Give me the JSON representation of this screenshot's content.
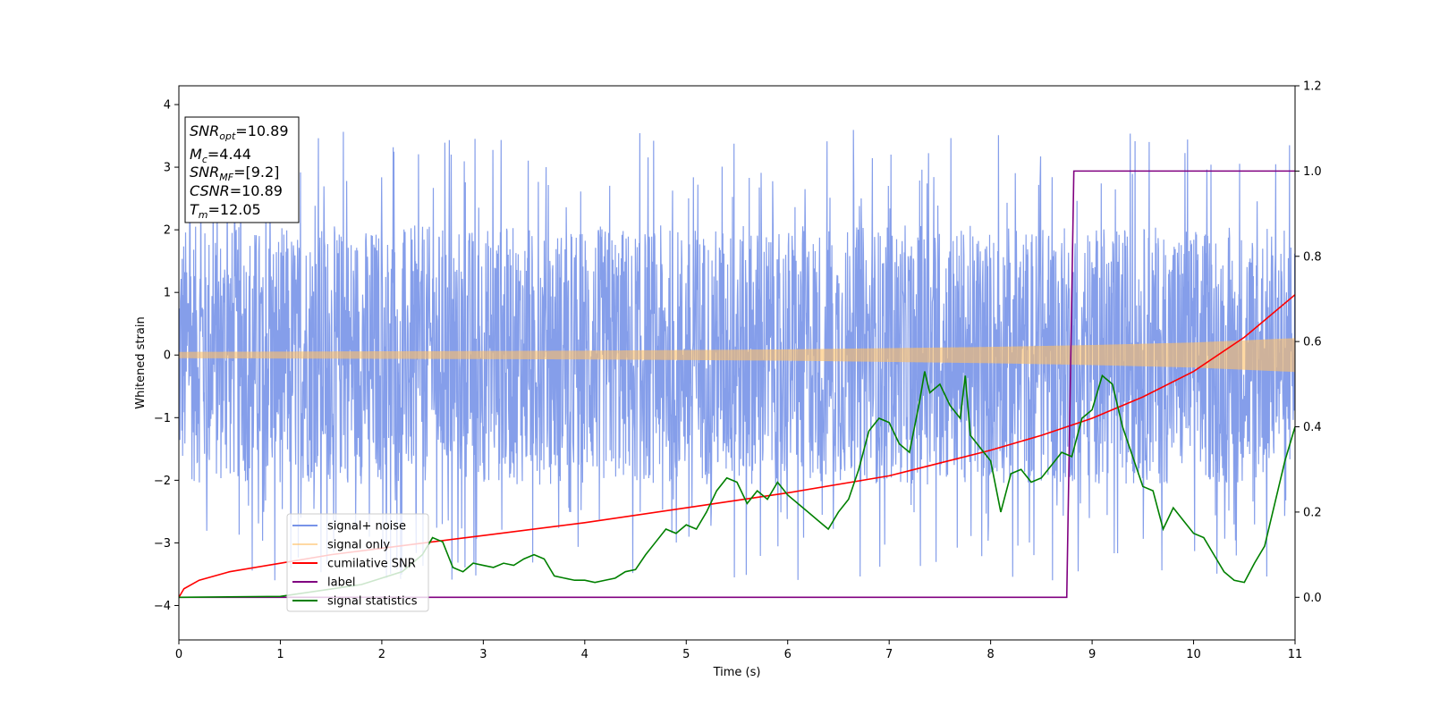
{
  "chart_data": {
    "type": "line",
    "xlabel": "Time (s)",
    "ylabel": "Whitened strain",
    "xlim": [
      0,
      11
    ],
    "ylim": [
      -4.55,
      4.3
    ],
    "y2lim": [
      -0.1,
      1.2
    ],
    "x_ticks": [
      "0",
      "1",
      "2",
      "3",
      "4",
      "5",
      "6",
      "7",
      "8",
      "9",
      "10",
      "11"
    ],
    "y_ticks": [
      "−4",
      "−3",
      "−2",
      "−1",
      "0",
      "1",
      "2",
      "3",
      "4"
    ],
    "y2_ticks": [
      "0.0",
      "0.2",
      "0.4",
      "0.6",
      "0.8",
      "1.0",
      "1.2"
    ],
    "legend_position": "lower-left",
    "info_box": {
      "snr_opt": "SNR_opt=10.89",
      "mc": "M_c=4.44",
      "snr_mf": "SNR_MF=[9.2]",
      "csnr": "CSNR=10.89",
      "tm": "T_m=12.05"
    },
    "series": [
      {
        "name": "signal+ noise",
        "axis": "left",
        "color": "#7893e8",
        "description_values": {
          "band_low": -2.3,
          "band_high": 2.3,
          "max_spike": 3.92,
          "min_spike": -4.15
        }
      },
      {
        "name": "signal only",
        "axis": "left",
        "color": "#ffbf66",
        "envelope": {
          "x": [
            0,
            2,
            4,
            6,
            8,
            9,
            10,
            11
          ],
          "amp": [
            0.05,
            0.06,
            0.07,
            0.09,
            0.13,
            0.16,
            0.2,
            0.27
          ]
        }
      },
      {
        "name": "cumilative SNR",
        "axis": "right",
        "color": "#ff0000",
        "x": [
          0,
          0.05,
          0.2,
          0.5,
          1,
          1.5,
          2,
          3,
          4,
          5,
          6,
          7,
          8,
          8.5,
          9,
          9.5,
          10,
          10.5,
          11
        ],
        "y": [
          0.0,
          0.02,
          0.04,
          0.06,
          0.08,
          0.1,
          0.115,
          0.145,
          0.175,
          0.21,
          0.245,
          0.285,
          0.345,
          0.38,
          0.42,
          0.47,
          0.53,
          0.61,
          0.71
        ]
      },
      {
        "name": "label",
        "axis": "right",
        "color": "#800080",
        "x": [
          0,
          8.75,
          8.82,
          11
        ],
        "y": [
          0,
          0,
          1,
          1
        ]
      },
      {
        "name": "signal statistics",
        "axis": "right",
        "color": "#008000",
        "x": [
          0,
          1,
          1.8,
          2.2,
          2.4,
          2.5,
          2.6,
          2.7,
          2.8,
          2.9,
          3.0,
          3.1,
          3.2,
          3.3,
          3.4,
          3.5,
          3.6,
          3.7,
          3.8,
          3.9,
          4.0,
          4.1,
          4.2,
          4.3,
          4.4,
          4.5,
          4.6,
          4.7,
          4.8,
          4.9,
          5.0,
          5.1,
          5.2,
          5.3,
          5.4,
          5.5,
          5.6,
          5.7,
          5.8,
          5.9,
          6.0,
          6.1,
          6.2,
          6.3,
          6.4,
          6.5,
          6.6,
          6.7,
          6.8,
          6.9,
          7.0,
          7.1,
          7.2,
          7.3,
          7.35,
          7.4,
          7.5,
          7.6,
          7.7,
          7.75,
          7.8,
          7.9,
          8.0,
          8.1,
          8.2,
          8.3,
          8.4,
          8.5,
          8.6,
          8.7,
          8.8,
          8.9,
          9.0,
          9.1,
          9.2,
          9.3,
          9.4,
          9.5,
          9.6,
          9.7,
          9.8,
          9.9,
          10.0,
          10.1,
          10.2,
          10.3,
          10.4,
          10.5,
          10.6,
          10.7,
          10.8,
          10.9,
          11.0
        ],
        "y": [
          0.0,
          0.002,
          0.03,
          0.06,
          0.1,
          0.14,
          0.13,
          0.07,
          0.06,
          0.08,
          0.075,
          0.07,
          0.08,
          0.075,
          0.09,
          0.1,
          0.09,
          0.05,
          0.045,
          0.04,
          0.04,
          0.035,
          0.04,
          0.045,
          0.06,
          0.065,
          0.1,
          0.13,
          0.16,
          0.15,
          0.17,
          0.16,
          0.2,
          0.25,
          0.28,
          0.27,
          0.22,
          0.25,
          0.23,
          0.27,
          0.24,
          0.22,
          0.2,
          0.18,
          0.16,
          0.2,
          0.23,
          0.3,
          0.39,
          0.42,
          0.41,
          0.36,
          0.34,
          0.46,
          0.53,
          0.48,
          0.5,
          0.45,
          0.42,
          0.52,
          0.38,
          0.35,
          0.32,
          0.2,
          0.29,
          0.3,
          0.27,
          0.28,
          0.31,
          0.34,
          0.33,
          0.42,
          0.44,
          0.52,
          0.5,
          0.4,
          0.33,
          0.26,
          0.25,
          0.16,
          0.21,
          0.18,
          0.15,
          0.14,
          0.1,
          0.06,
          0.04,
          0.035,
          0.08,
          0.12,
          0.22,
          0.32,
          0.4
        ]
      }
    ]
  }
}
